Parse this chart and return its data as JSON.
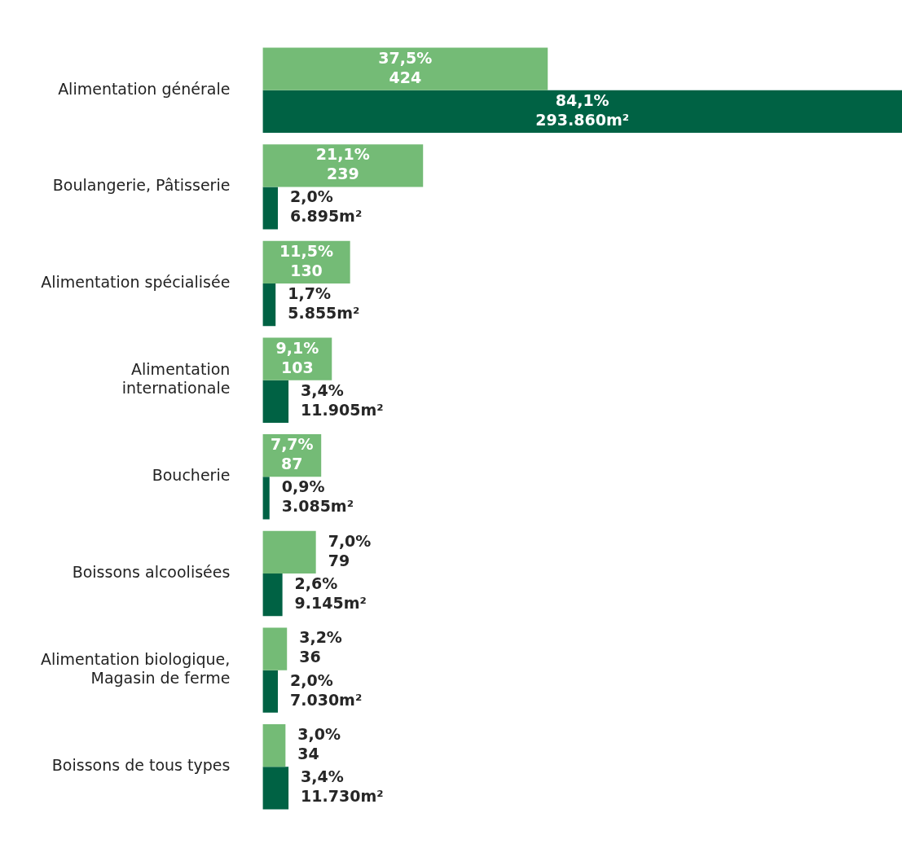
{
  "chart_data": {
    "type": "bar",
    "orientation": "horizontal",
    "categories": [
      "Alimentation générale",
      "Boulangerie, Pâtisserie",
      "Alimentation spécialisée",
      "Alimentation internationale",
      "Boucherie",
      "Boissons alcoolisées",
      "Alimentation biologique, Magasin de ferme",
      "Boissons de tous types"
    ],
    "series": [
      {
        "color": "#74bb76",
        "values": [
          37.5,
          21.1,
          11.5,
          9.1,
          7.7,
          7.0,
          3.2,
          3.0
        ],
        "value_labels": [
          "37,5%\n424",
          "21,1%\n239",
          "11,5%\n130",
          "9,1%\n103",
          "7,7%\n87",
          "7,0%\n79",
          "3,2%\n36",
          "3,0%\n34"
        ]
      },
      {
        "color": "#006244",
        "values": [
          84.1,
          2.0,
          1.7,
          3.4,
          0.9,
          2.6,
          2.0,
          3.4
        ],
        "value_labels": [
          "84,1%\n293.860m²",
          "2,0%\n6.895m²",
          "1,7%\n5.855m²",
          "3,4%\n11.905m²",
          "0,9%\n3.085m²",
          "2,6%\n9.145m²",
          "2,0%\n7.030m²",
          "3,4%\n11.730m²"
        ]
      }
    ],
    "grid": false,
    "legend": false
  }
}
